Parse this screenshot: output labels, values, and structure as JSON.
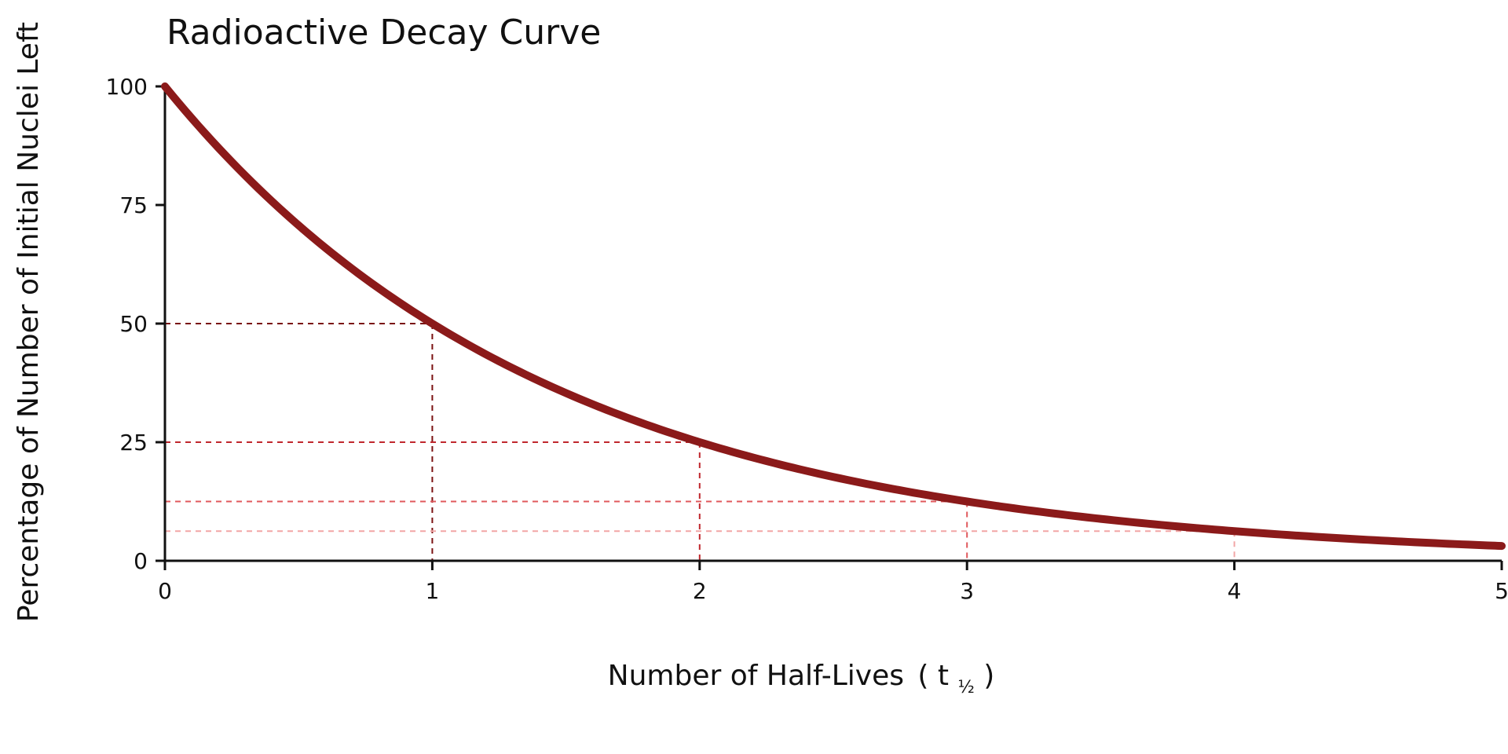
{
  "chart_data": {
    "type": "line",
    "title": "Radioactive Decay Curve",
    "xlabel": "Number of Half-Lives",
    "xlabel_paren_open": "(",
    "xlabel_symbol": "t",
    "xlabel_subscript": "½",
    "xlabel_paren_close": ")",
    "ylabel": "Percentage of Number of Initial Nuclei Left",
    "xlim": [
      0,
      5
    ],
    "ylim": [
      0,
      100
    ],
    "x_ticks": [
      0,
      1,
      2,
      3,
      4,
      5
    ],
    "y_ticks": [
      0,
      25,
      50,
      75,
      100
    ],
    "grid": false,
    "series": [
      {
        "color": "#8b1a1a",
        "function": "100 * 0.5^x",
        "x": [
          0,
          0.25,
          0.5,
          0.75,
          1,
          1.25,
          1.5,
          1.75,
          2,
          2.25,
          2.5,
          2.75,
          3,
          3.25,
          3.5,
          3.75,
          4,
          4.25,
          4.5,
          4.75,
          5
        ],
        "y": [
          100,
          84.1,
          70.7,
          59.5,
          50,
          42.0,
          35.4,
          29.7,
          25,
          21.0,
          17.7,
          14.9,
          12.5,
          10.5,
          8.8,
          7.4,
          6.25,
          5.3,
          4.4,
          3.7,
          3.125
        ]
      }
    ],
    "guides": [
      {
        "x": 1,
        "y": 50,
        "color": "#7a1212"
      },
      {
        "x": 2,
        "y": 25,
        "color": "#c0272d"
      },
      {
        "x": 3,
        "y": 12.5,
        "color": "#e0585c"
      },
      {
        "x": 4,
        "y": 6.25,
        "color": "#f2a6a6"
      }
    ]
  }
}
